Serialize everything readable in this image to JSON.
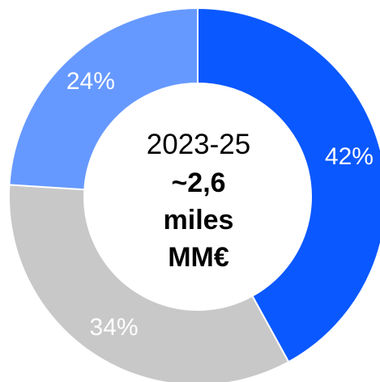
{
  "chart_data": {
    "type": "pie",
    "variant": "donut",
    "start": "top",
    "direction": "clockwise",
    "slices": [
      {
        "label": "42%",
        "value": 42,
        "color": "#0A58FF"
      },
      {
        "label": "34%",
        "value": 34,
        "color": "#C8C8C8"
      },
      {
        "label": "24%",
        "value": 24,
        "color": "#6699FF"
      }
    ],
    "center_label": {
      "period": "2023-25",
      "line1": "~2,6",
      "line2": "miles",
      "line3": "MM€"
    }
  }
}
